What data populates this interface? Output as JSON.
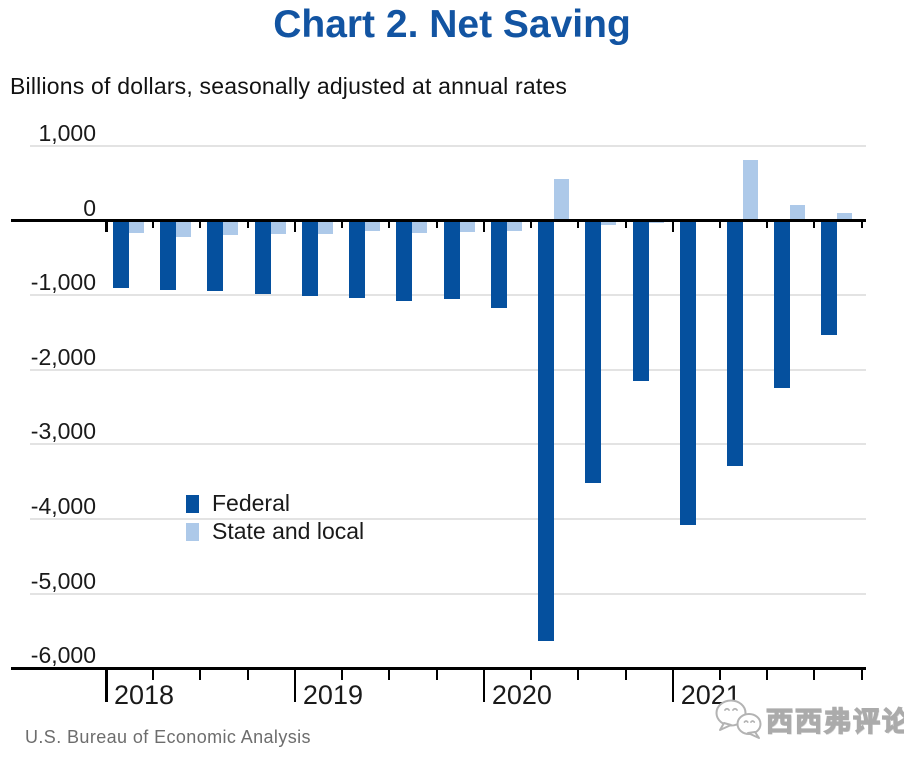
{
  "page": {
    "source_note": "U.S. Bureau of Economic Analysis",
    "watermark": {
      "text": "西西弗评论",
      "logo_icon": "wechat-bubbles-icon",
      "color": "#ababab"
    }
  },
  "chart_data": {
    "type": "bar",
    "title": "Chart 2. Net Saving",
    "subtitle": "Billions of dollars, seasonally adjusted at annual rates",
    "unit": "billions of dollars, seasonally adjusted at annual rates",
    "categories": [
      "2018 Q1",
      "2018 Q2",
      "2018 Q3",
      "2018 Q4",
      "2019 Q1",
      "2019 Q2",
      "2019 Q3",
      "2019 Q4",
      "2020 Q1",
      "2020 Q2",
      "2020 Q3",
      "2020 Q4",
      "2021 Q1",
      "2021 Q2",
      "2021 Q3",
      "2021 Q4"
    ],
    "series": [
      {
        "name": "Federal",
        "color": "#05509e",
        "values": [
          -910,
          -930,
          -950,
          -985,
          -1015,
          -1045,
          -1075,
          -1050,
          -1175,
          -5640,
          -3515,
          -2145,
          -4080,
          -3290,
          -2240,
          -1535
        ]
      },
      {
        "name": "State and local",
        "color": "#adc9e9",
        "values": [
          -170,
          -220,
          -195,
          -185,
          -175,
          -140,
          -170,
          -160,
          -140,
          550,
          -60,
          -40,
          -10,
          810,
          205,
          95
        ]
      }
    ],
    "x_year_labels": [
      "2018",
      "2019",
      "2020",
      "2021"
    ],
    "ylim": [
      -6000,
      1000
    ],
    "ytick_step": 1000,
    "ytick_labels": [
      "1,000",
      "0",
      "-1,000",
      "-2,000",
      "-3,000",
      "-4,000",
      "-5,000",
      "-6,000"
    ],
    "grid": true,
    "legend_position": "middle-left",
    "axis_color": "#000000",
    "gridline_color": "#e3e3e3",
    "title_color": "#1254a2"
  }
}
